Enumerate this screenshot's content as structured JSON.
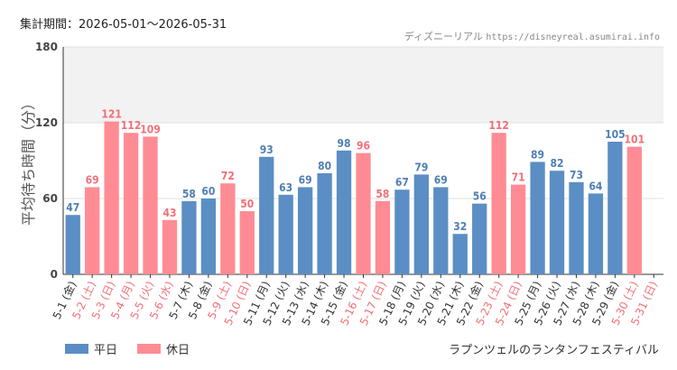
{
  "header": {
    "period_label": "集計期間：",
    "period_range": "2026-05-01～2026-05-31",
    "credit_site": "ディズニーリアル",
    "credit_url": "https://disneyreal.asumirai.info"
  },
  "footer": {
    "attraction": "ラプンツェルのランタンフェスティバル"
  },
  "colors": {
    "weekday": "#5b8ec4",
    "holiday": "#ff8c94",
    "holiday_text": "#f07078",
    "weekday_text": "#4f7fb5",
    "band": "#f2f2f2",
    "grid": "#e0e0e0"
  },
  "chart_data": {
    "type": "bar",
    "title": "",
    "xlabel": "",
    "ylabel": "平均待ち時間（分）",
    "ylim": [
      0,
      180
    ],
    "yticks": [
      0,
      60,
      120,
      180
    ],
    "shaded_band": [
      120,
      180
    ],
    "legend": "bottom-left",
    "series": [
      {
        "name": "平日",
        "kind": "weekday"
      },
      {
        "name": "休日",
        "kind": "holiday"
      }
    ],
    "categories": [
      "5-1 (金)",
      "5-2 (土)",
      "5-3 (日)",
      "5-4 (月)",
      "5-5 (火)",
      "5-6 (水)",
      "5-7 (木)",
      "5-8 (金)",
      "5-9 (土)",
      "5-10 (日)",
      "5-11 (月)",
      "5-12 (火)",
      "5-13 (水)",
      "5-14 (木)",
      "5-15 (金)",
      "5-16 (土)",
      "5-17 (日)",
      "5-18 (月)",
      "5-19 (火)",
      "5-20 (水)",
      "5-21 (木)",
      "5-22 (金)",
      "5-23 (土)",
      "5-24 (日)",
      "5-25 (月)",
      "5-26 (火)",
      "5-27 (水)",
      "5-28 (木)",
      "5-29 (金)",
      "5-30 (土)",
      "5-31 (日)"
    ],
    "values": [
      47,
      69,
      121,
      112,
      109,
      43,
      58,
      60,
      72,
      50,
      93,
      63,
      69,
      80,
      98,
      96,
      58,
      67,
      79,
      69,
      32,
      56,
      112,
      71,
      89,
      82,
      73,
      64,
      105,
      101,
      null
    ],
    "is_holiday": [
      false,
      true,
      true,
      true,
      true,
      true,
      false,
      false,
      true,
      true,
      false,
      false,
      false,
      false,
      false,
      true,
      true,
      false,
      false,
      false,
      false,
      false,
      true,
      true,
      false,
      false,
      false,
      false,
      false,
      true,
      true
    ]
  }
}
